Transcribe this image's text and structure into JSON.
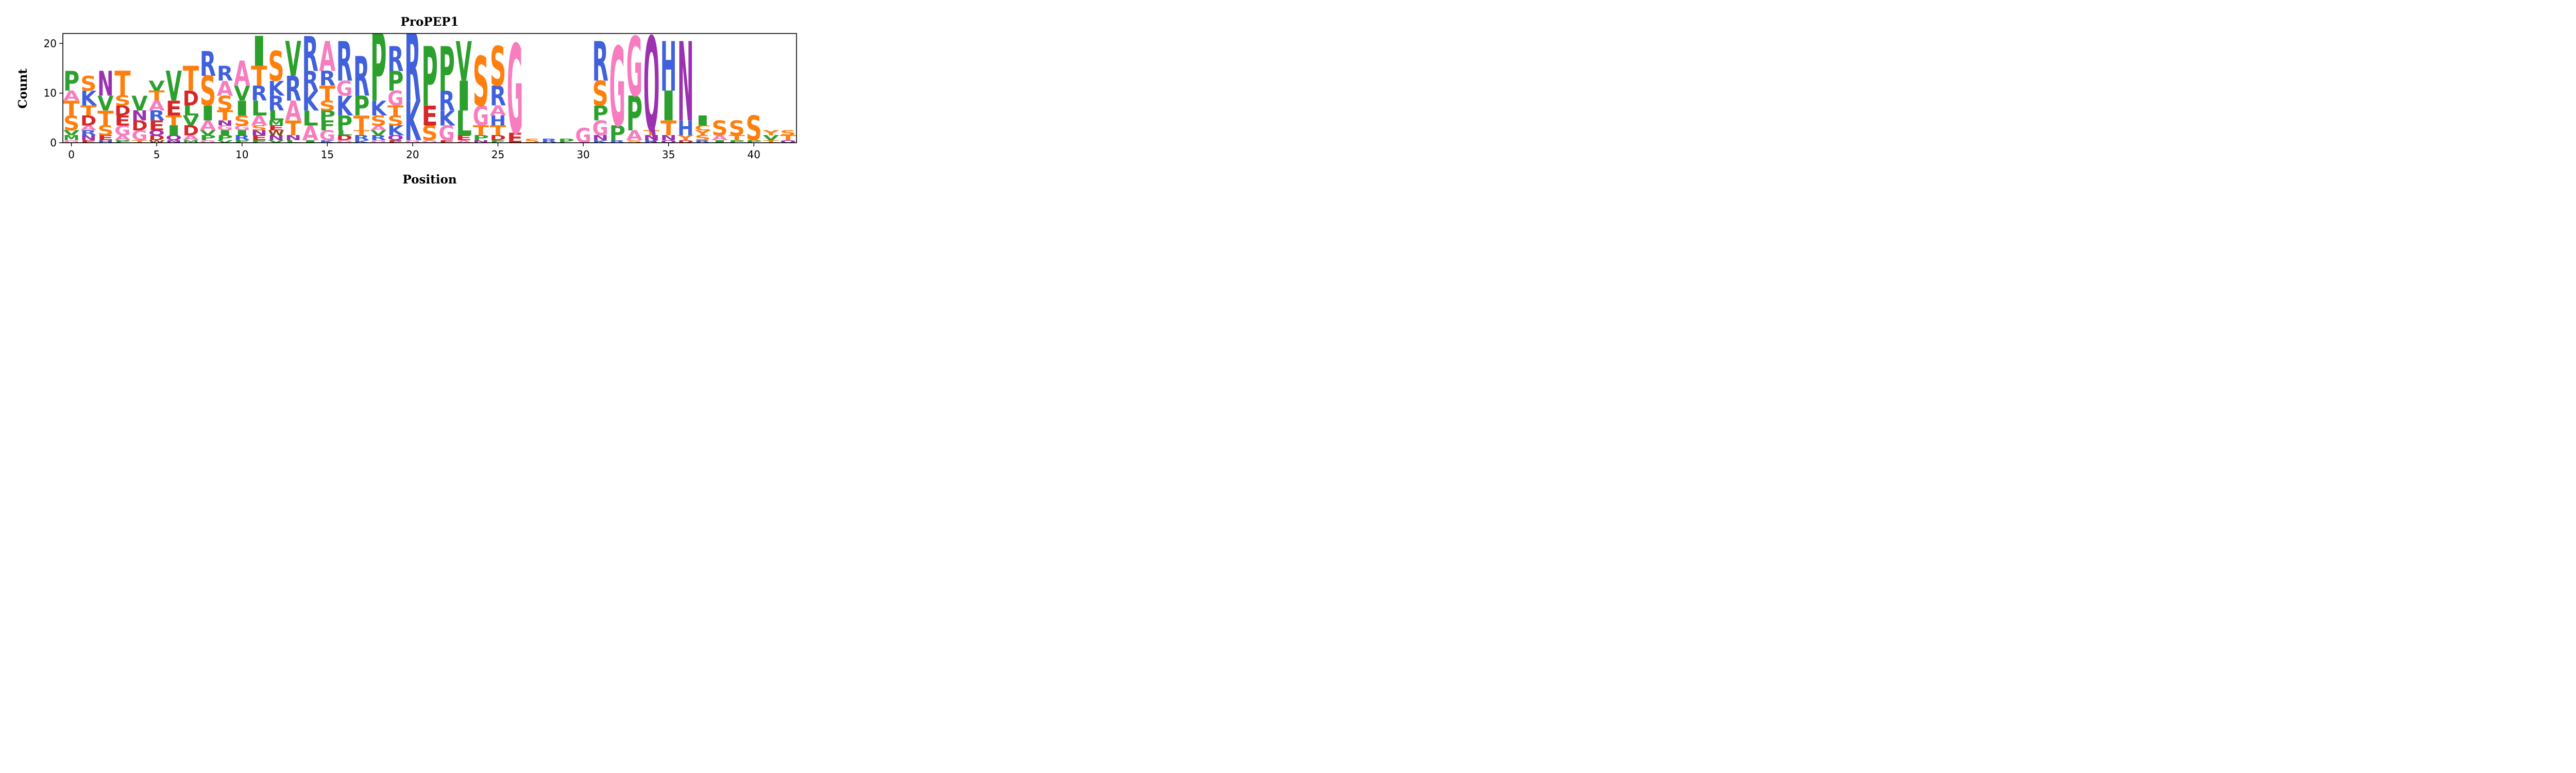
{
  "chart_data": {
    "type": "sequence-logo",
    "title": "ProPEP1",
    "xlabel": "Position",
    "ylabel": "Count",
    "xlim": [
      -0.5,
      42.5
    ],
    "ylim": [
      0,
      22
    ],
    "xticks": [
      0,
      5,
      10,
      15,
      20,
      25,
      30,
      35,
      40
    ],
    "yticks": [
      0,
      10,
      20
    ],
    "colors": {
      "A": "#f77dbf",
      "G": "#f77dbf",
      "S": "#ff7f0e",
      "T": "#ff7f0e",
      "Y": "#ff7f0e",
      "C": "#ff7f0e",
      "R": "#4060dc",
      "K": "#4060dc",
      "H": "#4060dc",
      "D": "#d62728",
      "E": "#d62728",
      "P": "#2ca02c",
      "V": "#2ca02c",
      "I": "#2ca02c",
      "L": "#2ca02c",
      "M": "#2ca02c",
      "F": "#2ca02c",
      "W": "#8b4513",
      "N": "#9b30b0",
      "Q": "#9b30b0"
    },
    "positions": [
      {
        "x": 0,
        "stack": [
          [
            "G",
            0.5
          ],
          [
            "M",
            1
          ],
          [
            "V",
            1
          ],
          [
            "S",
            3
          ],
          [
            "T",
            3
          ],
          [
            "A",
            2
          ],
          [
            "P",
            4
          ]
        ]
      },
      {
        "x": 1,
        "stack": [
          [
            "E",
            0.5
          ],
          [
            "N",
            1
          ],
          [
            "R",
            1
          ],
          [
            "A",
            1
          ],
          [
            "D",
            2
          ],
          [
            "T",
            2
          ],
          [
            "K",
            3
          ],
          [
            "S",
            3
          ]
        ]
      },
      {
        "x": 2,
        "stack": [
          [
            "H",
            0.5
          ],
          [
            "E",
            1
          ],
          [
            "S",
            2
          ],
          [
            "T",
            3
          ],
          [
            "V",
            3
          ],
          [
            "N",
            5
          ]
        ]
      },
      {
        "x": 3,
        "stack": [
          [
            "P",
            0.5
          ],
          [
            "A",
            1
          ],
          [
            "G",
            2
          ],
          [
            "E",
            2
          ],
          [
            "D",
            2
          ],
          [
            "S",
            2
          ],
          [
            "T",
            5
          ]
        ]
      },
      {
        "x": 4,
        "stack": [
          [
            "T",
            0.5
          ],
          [
            "G",
            2
          ],
          [
            "D",
            2
          ],
          [
            "N",
            2
          ],
          [
            "V",
            3
          ]
        ]
      },
      {
        "x": 5,
        "stack": [
          [
            "W",
            0.5
          ],
          [
            "D",
            1
          ],
          [
            "Q",
            1
          ],
          [
            "E",
            2
          ],
          [
            "R",
            2
          ],
          [
            "A",
            2
          ],
          [
            "T",
            2
          ],
          [
            "V",
            2
          ]
        ]
      },
      {
        "x": 6,
        "stack": [
          [
            "N",
            0.5
          ],
          [
            "Q",
            1
          ],
          [
            "I",
            2
          ],
          [
            "T",
            2
          ],
          [
            "E",
            3
          ],
          [
            "V",
            6
          ]
        ]
      },
      {
        "x": 7,
        "stack": [
          [
            "M",
            0.5
          ],
          [
            "A",
            1
          ],
          [
            "D",
            2
          ],
          [
            "V",
            2
          ],
          [
            "L",
            2
          ],
          [
            "D",
            3
          ],
          [
            "T",
            5
          ]
        ]
      },
      {
        "x": 8,
        "stack": [
          [
            "G",
            0.5
          ],
          [
            "P",
            1
          ],
          [
            "V",
            1
          ],
          [
            "A",
            2
          ],
          [
            "I",
            3
          ],
          [
            "S",
            6
          ],
          [
            "R",
            5
          ]
        ]
      },
      {
        "x": 9,
        "stack": [
          [
            "V",
            0.5
          ],
          [
            "P",
            1
          ],
          [
            "I",
            1
          ],
          [
            "G",
            1
          ],
          [
            "N",
            1
          ],
          [
            "T",
            2
          ],
          [
            "S",
            3
          ],
          [
            "A",
            3
          ],
          [
            "R",
            3
          ]
        ]
      },
      {
        "x": 10,
        "stack": [
          [
            "F",
            0.5
          ],
          [
            "R",
            1
          ],
          [
            "I",
            1
          ],
          [
            "G",
            1
          ],
          [
            "S",
            2
          ],
          [
            "I",
            3
          ],
          [
            "V",
            3
          ],
          [
            "A",
            5
          ]
        ]
      },
      {
        "x": 11,
        "stack": [
          [
            "F",
            0.5
          ],
          [
            "E",
            1
          ],
          [
            "N",
            1
          ],
          [
            "S",
            1
          ],
          [
            "A",
            2
          ],
          [
            "L",
            3
          ],
          [
            "R",
            3
          ],
          [
            "T",
            4
          ],
          [
            "I",
            6
          ]
        ]
      },
      {
        "x": 12,
        "stack": [
          [
            "V",
            0.5
          ],
          [
            "N",
            1
          ],
          [
            "W",
            1
          ],
          [
            "E",
            1
          ],
          [
            "M",
            1
          ],
          [
            "L",
            2
          ],
          [
            "R",
            3
          ],
          [
            "K",
            3
          ],
          [
            "S",
            6
          ]
        ]
      },
      {
        "x": 13,
        "stack": [
          [
            "L",
            0.5
          ],
          [
            "N",
            1
          ],
          [
            "T",
            3
          ],
          [
            "A",
            4
          ],
          [
            "R",
            5
          ],
          [
            "V",
            7
          ]
        ]
      },
      {
        "x": 14,
        "stack": [
          [
            "I",
            0.5
          ],
          [
            "A",
            3
          ],
          [
            "L",
            3
          ],
          [
            "K",
            4
          ],
          [
            "R",
            4
          ],
          [
            "R",
            7
          ]
        ]
      },
      {
        "x": 15,
        "stack": [
          [
            "K",
            0.5
          ],
          [
            "G",
            2
          ],
          [
            "F",
            2
          ],
          [
            "P",
            2
          ],
          [
            "S",
            2
          ],
          [
            "T",
            3
          ],
          [
            "R",
            3
          ],
          [
            "A",
            6
          ]
        ]
      },
      {
        "x": 16,
        "stack": [
          [
            "G",
            0.5
          ],
          [
            "D",
            1
          ],
          [
            "L",
            1
          ],
          [
            "P",
            3
          ],
          [
            "K",
            4
          ],
          [
            "G",
            3
          ],
          [
            "R",
            8
          ]
        ]
      },
      {
        "x": 17,
        "stack": [
          [
            "K",
            0.5
          ],
          [
            "R",
            1
          ],
          [
            "T",
            1
          ],
          [
            "T",
            3
          ],
          [
            "P",
            4
          ],
          [
            "R",
            8
          ]
        ]
      },
      {
        "x": 18,
        "stack": [
          [
            "G",
            0.5
          ],
          [
            "R",
            1
          ],
          [
            "V",
            1
          ],
          [
            "A",
            1
          ],
          [
            "S",
            2
          ],
          [
            "K",
            3
          ],
          [
            "P",
            14
          ]
        ]
      },
      {
        "x": 19,
        "stack": [
          [
            "E",
            0.5
          ],
          [
            "Q",
            1
          ],
          [
            "K",
            2
          ],
          [
            "S",
            2
          ],
          [
            "T",
            2
          ],
          [
            "G",
            3
          ],
          [
            "P",
            4
          ],
          [
            "R",
            5
          ]
        ]
      },
      {
        "x": 20,
        "stack": [
          [
            "G",
            0.5
          ],
          [
            "K",
            8
          ],
          [
            "R",
            14
          ]
        ]
      },
      {
        "x": 21,
        "stack": [
          [
            "G",
            0.5
          ],
          [
            "S",
            3
          ],
          [
            "E",
            4
          ],
          [
            "P",
            12
          ]
        ]
      },
      {
        "x": 22,
        "stack": [
          [
            "E",
            0.5
          ],
          [
            "G",
            3
          ],
          [
            "K",
            3
          ],
          [
            "R",
            4
          ],
          [
            "P",
            9
          ]
        ]
      },
      {
        "x": 23,
        "stack": [
          [
            "A",
            0.5
          ],
          [
            "E",
            1
          ],
          [
            "L",
            5
          ],
          [
            "I",
            6
          ],
          [
            "V",
            8
          ]
        ]
      },
      {
        "x": 24,
        "stack": [
          [
            "N",
            0.5
          ],
          [
            "P",
            1
          ],
          [
            "T",
            2
          ],
          [
            "G",
            4
          ],
          [
            "S",
            10
          ]
        ]
      },
      {
        "x": 25,
        "stack": [
          [
            "F",
            0.5
          ],
          [
            "D",
            1
          ],
          [
            "T",
            2
          ],
          [
            "H",
            2
          ],
          [
            "A",
            2
          ],
          [
            "R",
            4
          ],
          [
            "S",
            8
          ]
        ]
      },
      {
        "x": 26,
        "stack": [
          [
            "E",
            2
          ],
          [
            "G",
            18
          ]
        ]
      },
      {
        "x": 27,
        "stack": [
          [
            "S",
            0.8
          ]
        ]
      },
      {
        "x": 28,
        "stack": [
          [
            "R",
            0.8
          ]
        ]
      },
      {
        "x": 29,
        "stack": [
          [
            "P",
            0.8
          ]
        ]
      },
      {
        "x": 30,
        "stack": [
          [
            "G",
            3
          ]
        ]
      },
      {
        "x": 31,
        "stack": [
          [
            "K",
            0.5
          ],
          [
            "N",
            1
          ],
          [
            "G",
            3
          ],
          [
            "P",
            3
          ],
          [
            "S",
            5
          ],
          [
            "R",
            8
          ]
        ]
      },
      {
        "x": 32,
        "stack": [
          [
            "R",
            0.5
          ],
          [
            "P",
            3
          ],
          [
            "G",
            16
          ]
        ]
      },
      {
        "x": 33,
        "stack": [
          [
            "S",
            0.5
          ],
          [
            "A",
            2
          ],
          [
            "P",
            7
          ],
          [
            "G",
            12
          ]
        ]
      },
      {
        "x": 34,
        "stack": [
          [
            "K",
            0.5
          ],
          [
            "N",
            1
          ],
          [
            "T",
            1
          ],
          [
            "Q",
            19
          ]
        ]
      },
      {
        "x": 35,
        "stack": [
          [
            "Q",
            0.5
          ],
          [
            "N",
            1
          ],
          [
            "T",
            3
          ],
          [
            "I",
            6
          ],
          [
            "H",
            10
          ]
        ]
      },
      {
        "x": 36,
        "stack": [
          [
            "D",
            0.5
          ],
          [
            "Y",
            1
          ],
          [
            "H",
            3
          ],
          [
            "N",
            16
          ]
        ]
      },
      {
        "x": 37,
        "stack": [
          [
            "R",
            0.5
          ],
          [
            "S",
            1
          ],
          [
            "Y",
            1
          ],
          [
            "C",
            1
          ],
          [
            "I",
            2
          ]
        ]
      },
      {
        "x": 38,
        "stack": [
          [
            "I",
            0.5
          ],
          [
            "A",
            1
          ],
          [
            "S",
            3
          ]
        ]
      },
      {
        "x": 39,
        "stack": [
          [
            "P",
            0.5
          ],
          [
            "T",
            1
          ],
          [
            "S",
            3
          ]
        ]
      },
      {
        "x": 40,
        "stack": [
          [
            "P",
            0.5
          ],
          [
            "S",
            5
          ]
        ]
      },
      {
        "x": 41,
        "stack": [
          [
            "T",
            0.5
          ],
          [
            "V",
            1
          ],
          [
            "Y",
            1
          ]
        ]
      },
      {
        "x": 42,
        "stack": [
          [
            "Q",
            0.5
          ],
          [
            "T",
            1
          ],
          [
            "S",
            1
          ]
        ]
      }
    ]
  }
}
